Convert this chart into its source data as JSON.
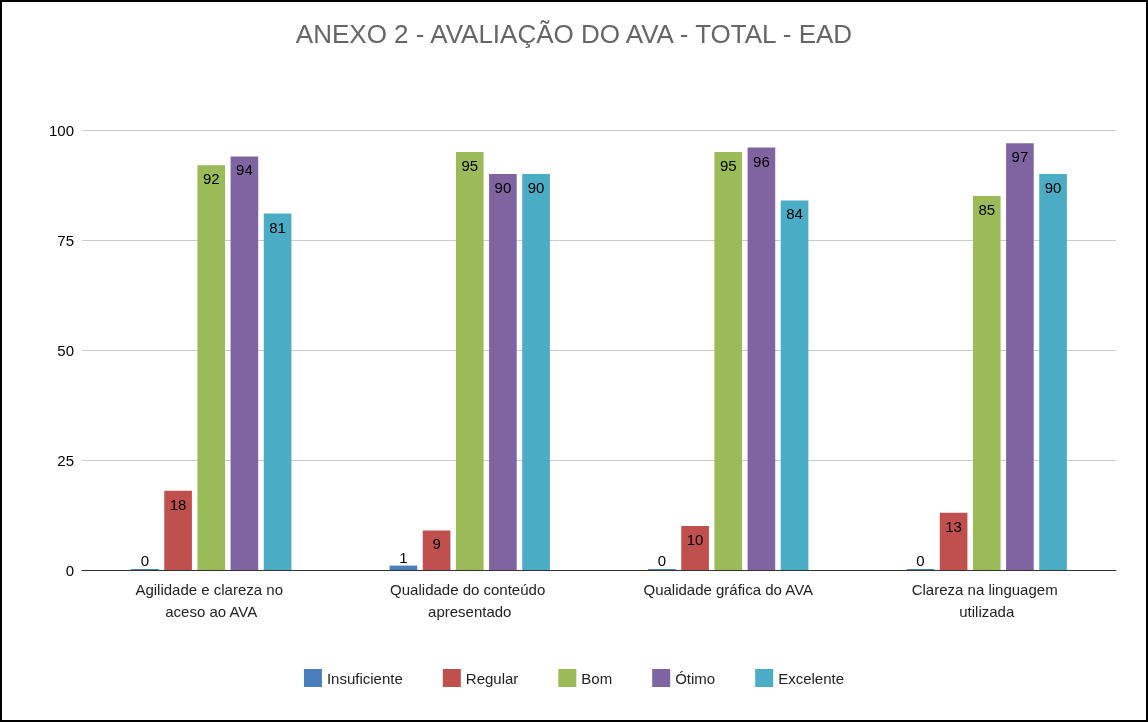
{
  "chart_data": {
    "type": "bar",
    "title": "ANEXO 2 - AVALIAÇÃO DO AVA - TOTAL - EAD",
    "categories": [
      "Agilidade e clareza no aceso ao AVA",
      "Qualidade do conteúdo apresentado",
      "Qualidade gráfica do AVA",
      "Clareza na linguagem utilizada"
    ],
    "series": [
      {
        "name": "Insuficiente",
        "color": "#4a7ebb",
        "values": [
          0,
          1,
          0,
          0
        ]
      },
      {
        "name": "Regular",
        "color": "#c0504d",
        "values": [
          18,
          9,
          10,
          13
        ]
      },
      {
        "name": "Bom",
        "color": "#9bbb59",
        "values": [
          92,
          95,
          95,
          85
        ]
      },
      {
        "name": "Ótimo",
        "color": "#8064a2",
        "values": [
          94,
          90,
          96,
          97
        ]
      },
      {
        "name": "Excelente",
        "color": "#4bacc6",
        "values": [
          81,
          90,
          84,
          90
        ]
      }
    ],
    "ylim": [
      0,
      100
    ],
    "yticks": [
      0,
      25,
      50,
      75,
      100
    ],
    "grid": "y",
    "legend": "bottom",
    "data_labels": true
  }
}
